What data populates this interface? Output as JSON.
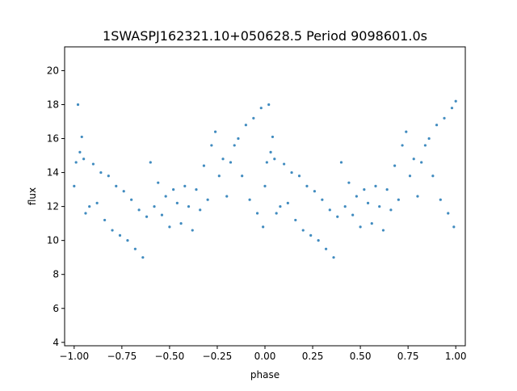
{
  "chart_data": {
    "type": "scatter",
    "title": "1SWASPJ162321.10+050628.5 Period 9098601.0s",
    "xlabel": "phase",
    "ylabel": "flux",
    "xlim": [
      -1.05,
      1.05
    ],
    "ylim": [
      3.8,
      21.4
    ],
    "xticks": [
      -1.0,
      -0.75,
      -0.5,
      -0.25,
      0.0,
      0.25,
      0.5,
      0.75,
      1.0
    ],
    "xtick_labels": [
      "−1.00",
      "−0.75",
      "−0.50",
      "−0.25",
      "0.00",
      "0.25",
      "0.50",
      "0.75",
      "1.00"
    ],
    "yticks": [
      4,
      6,
      8,
      10,
      12,
      14,
      16,
      18,
      20
    ],
    "ytick_labels": [
      "4",
      "6",
      "8",
      "10",
      "12",
      "14",
      "16",
      "18",
      "20"
    ],
    "grid": false,
    "marker_color": "#1f77b4",
    "description": "Phase-folded light curve; pattern repeats over phase -1..0 and 0..1",
    "series": [
      {
        "points": [
          [
            -1.0,
            13.2
          ],
          [
            -0.99,
            14.6
          ],
          [
            -0.98,
            18.0
          ],
          [
            -0.97,
            15.2
          ],
          [
            -0.96,
            16.1
          ],
          [
            -0.95,
            14.8
          ],
          [
            -0.94,
            11.6
          ],
          [
            -0.92,
            12.0
          ],
          [
            -0.9,
            14.5
          ],
          [
            -0.88,
            12.2
          ],
          [
            -0.86,
            14.0
          ],
          [
            -0.84,
            11.2
          ],
          [
            -0.82,
            13.8
          ],
          [
            -0.8,
            10.6
          ],
          [
            -0.78,
            13.2
          ],
          [
            -0.76,
            10.3
          ],
          [
            -0.74,
            12.9
          ],
          [
            -0.72,
            10.0
          ],
          [
            -0.7,
            12.4
          ],
          [
            -0.68,
            9.5
          ],
          [
            -0.66,
            11.8
          ],
          [
            -0.64,
            9.0
          ],
          [
            -0.62,
            11.4
          ],
          [
            -0.6,
            14.6
          ],
          [
            -0.58,
            12.0
          ],
          [
            -0.56,
            13.4
          ],
          [
            -0.54,
            11.5
          ],
          [
            -0.52,
            12.6
          ],
          [
            -0.5,
            10.8
          ],
          [
            -0.48,
            13.0
          ],
          [
            -0.46,
            12.2
          ],
          [
            -0.44,
            11.0
          ],
          [
            -0.42,
            13.2
          ],
          [
            -0.4,
            12.0
          ],
          [
            -0.38,
            10.6
          ],
          [
            -0.36,
            13.0
          ],
          [
            -0.34,
            11.8
          ],
          [
            -0.32,
            14.4
          ],
          [
            -0.3,
            12.4
          ],
          [
            -0.28,
            15.6
          ],
          [
            -0.26,
            16.4
          ],
          [
            -0.24,
            13.8
          ],
          [
            -0.22,
            14.8
          ],
          [
            -0.2,
            12.6
          ],
          [
            -0.18,
            14.6
          ],
          [
            -0.16,
            15.6
          ],
          [
            -0.14,
            16.0
          ],
          [
            -0.12,
            13.8
          ],
          [
            -0.1,
            16.8
          ],
          [
            -0.08,
            12.4
          ],
          [
            -0.06,
            17.2
          ],
          [
            -0.04,
            11.6
          ],
          [
            -0.02,
            17.8
          ],
          [
            -0.01,
            10.8
          ],
          [
            0.0,
            13.2
          ],
          [
            0.01,
            14.6
          ],
          [
            0.02,
            18.0
          ],
          [
            0.03,
            15.2
          ],
          [
            0.04,
            16.1
          ],
          [
            0.05,
            14.8
          ],
          [
            0.06,
            11.6
          ],
          [
            0.08,
            12.0
          ],
          [
            0.1,
            14.5
          ],
          [
            0.12,
            12.2
          ],
          [
            0.14,
            14.0
          ],
          [
            0.16,
            11.2
          ],
          [
            0.18,
            13.8
          ],
          [
            0.2,
            10.6
          ],
          [
            0.22,
            13.2
          ],
          [
            0.24,
            10.3
          ],
          [
            0.26,
            12.9
          ],
          [
            0.28,
            10.0
          ],
          [
            0.3,
            12.4
          ],
          [
            0.32,
            9.5
          ],
          [
            0.34,
            11.8
          ],
          [
            0.36,
            9.0
          ],
          [
            0.38,
            11.4
          ],
          [
            0.4,
            14.6
          ],
          [
            0.42,
            12.0
          ],
          [
            0.44,
            13.4
          ],
          [
            0.46,
            11.5
          ],
          [
            0.48,
            12.6
          ],
          [
            0.5,
            10.8
          ],
          [
            0.52,
            13.0
          ],
          [
            0.54,
            12.2
          ],
          [
            0.56,
            11.0
          ],
          [
            0.58,
            13.2
          ],
          [
            0.6,
            12.0
          ],
          [
            0.62,
            10.6
          ],
          [
            0.64,
            13.0
          ],
          [
            0.66,
            11.8
          ],
          [
            0.68,
            14.4
          ],
          [
            0.7,
            12.4
          ],
          [
            0.72,
            15.6
          ],
          [
            0.74,
            16.4
          ],
          [
            0.76,
            13.8
          ],
          [
            0.78,
            14.8
          ],
          [
            0.8,
            12.6
          ],
          [
            0.82,
            14.6
          ],
          [
            0.84,
            15.6
          ],
          [
            0.86,
            16.0
          ],
          [
            0.88,
            13.8
          ],
          [
            0.9,
            16.8
          ],
          [
            0.92,
            12.4
          ],
          [
            0.94,
            17.2
          ],
          [
            0.96,
            11.6
          ],
          [
            0.98,
            17.8
          ],
          [
            0.99,
            10.8
          ],
          [
            1.0,
            18.2
          ]
        ]
      }
    ]
  }
}
